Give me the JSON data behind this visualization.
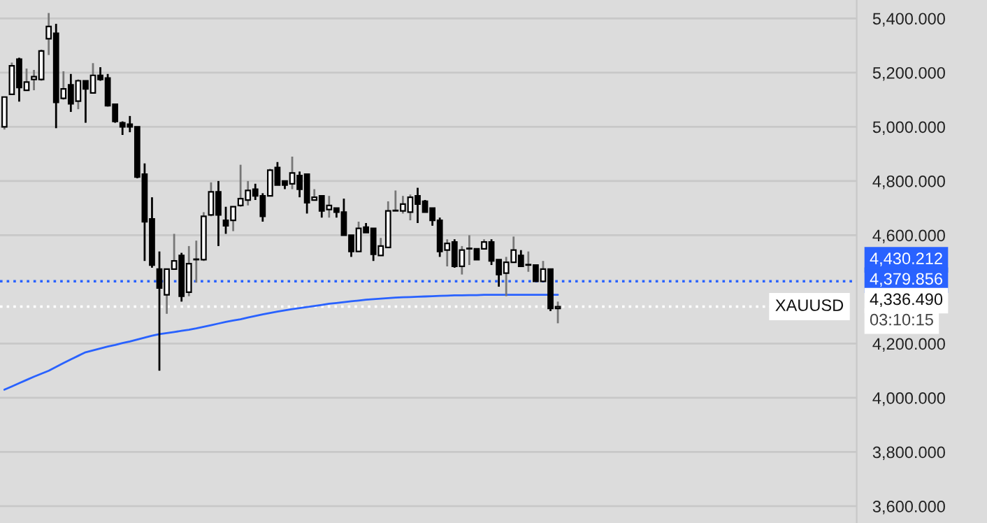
{
  "chart_data": {
    "type": "candlestick",
    "categories": [
      null,
      null,
      null,
      null,
      null,
      null,
      null,
      null,
      null,
      null,
      null,
      null,
      null,
      null,
      null,
      null,
      null,
      null,
      null,
      null,
      null,
      null,
      null,
      null,
      null,
      null,
      null,
      null,
      null,
      null,
      null,
      null,
      null,
      null,
      null,
      null,
      null,
      null,
      null,
      null,
      null,
      null,
      null,
      null,
      null,
      null,
      null,
      null,
      null,
      null,
      null,
      null,
      null,
      null,
      null,
      null,
      null,
      null,
      null,
      null,
      null,
      null,
      null,
      null,
      null,
      null,
      null,
      null,
      null,
      null,
      null,
      null,
      null,
      null,
      null,
      null
    ],
    "ohlc": [
      [
        5000,
        5110,
        4990,
        5110
      ],
      [
        5120,
        5237,
        5120,
        5225
      ],
      [
        5250,
        5255,
        5093,
        5145
      ],
      [
        5135,
        5215,
        5135,
        5165
      ],
      [
        5175,
        5210,
        5135,
        5185
      ],
      [
        5175,
        5285,
        5170,
        5280
      ],
      [
        5325,
        5420,
        5265,
        5370
      ],
      [
        5345,
        5380,
        4995,
        5090
      ],
      [
        5105,
        5205,
        5100,
        5140
      ],
      [
        5155,
        5195,
        5055,
        5085
      ],
      [
        5095,
        5175,
        5065,
        5170
      ],
      [
        5170,
        5170,
        5015,
        5140
      ],
      [
        5125,
        5235,
        5125,
        5190
      ],
      [
        5190,
        5220,
        5170,
        5175
      ],
      [
        5180,
        5195,
        5075,
        5078
      ],
      [
        5083,
        5083,
        5015,
        5020
      ],
      [
        5015,
        5020,
        4970,
        5000
      ],
      [
        5010,
        5040,
        4980,
        5000
      ],
      [
        5000,
        5000,
        4810,
        4815
      ],
      [
        4825,
        4865,
        4505,
        4650
      ],
      [
        4660,
        4740,
        4480,
        4490
      ],
      [
        4475,
        4540,
        4100,
        4405
      ],
      [
        4380,
        4475,
        4310,
        4475
      ],
      [
        4475,
        4605,
        4475,
        4505
      ],
      [
        4525,
        4535,
        4355,
        4375
      ],
      [
        4390,
        4560,
        4375,
        4495
      ],
      [
        4510,
        4580,
        4425,
        4510
      ],
      [
        4510,
        4685,
        4505,
        4670
      ],
      [
        4675,
        4795,
        4670,
        4760
      ],
      [
        4760,
        4800,
        4560,
        4675
      ],
      [
        4655,
        4705,
        4605,
        4635
      ],
      [
        4655,
        4705,
        4615,
        4705
      ],
      [
        4710,
        4860,
        4705,
        4735
      ],
      [
        4730,
        4800,
        4710,
        4765
      ],
      [
        4770,
        4790,
        4730,
        4745
      ],
      [
        4745,
        4755,
        4650,
        4670
      ],
      [
        4745,
        4845,
        4745,
        4840
      ],
      [
        4850,
        4870,
        4785,
        4785
      ],
      [
        4800,
        4800,
        4770,
        4785
      ],
      [
        4790,
        4890,
        4770,
        4830
      ],
      [
        4820,
        4835,
        4740,
        4770
      ],
      [
        4825,
        4825,
        4680,
        4720
      ],
      [
        4730,
        4770,
        4730,
        4740
      ],
      [
        4745,
        4745,
        4665,
        4690
      ],
      [
        4695,
        4745,
        4665,
        4710
      ],
      [
        4700,
        4700,
        4665,
        4685
      ],
      [
        4685,
        4735,
        4600,
        4600
      ],
      [
        4600,
        4600,
        4520,
        4540
      ],
      [
        4540,
        4650,
        4540,
        4625
      ],
      [
        4630,
        4645,
        4610,
        4610
      ],
      [
        4625,
        4625,
        4505,
        4530
      ],
      [
        4525,
        4590,
        4525,
        4560
      ],
      [
        4555,
        4725,
        4555,
        4690
      ],
      [
        4690,
        4765,
        4690,
        4690
      ],
      [
        4690,
        4745,
        4680,
        4715
      ],
      [
        4685,
        4750,
        4655,
        4740
      ],
      [
        4745,
        4775,
        4645,
        4715
      ],
      [
        4725,
        4730,
        4685,
        4685
      ],
      [
        4700,
        4700,
        4635,
        4655
      ],
      [
        4655,
        4665,
        4520,
        4540
      ],
      [
        4545,
        4585,
        4485,
        4570
      ],
      [
        4575,
        4585,
        4480,
        4485
      ],
      [
        4485,
        4560,
        4455,
        4545
      ],
      [
        4550,
        4600,
        4490,
        4550
      ],
      [
        4550,
        4550,
        4510,
        4510
      ],
      [
        4550,
        4585,
        4550,
        4575
      ],
      [
        4575,
        4585,
        4490,
        4505
      ],
      [
        4510,
        4510,
        4410,
        4455
      ],
      [
        4460,
        4520,
        4375,
        4500
      ],
      [
        4500,
        4595,
        4500,
        4545
      ],
      [
        4525,
        4545,
        4485,
        4485
      ],
      [
        4490,
        4540,
        4465,
        4490
      ],
      [
        4490,
        4490,
        4430,
        4430
      ],
      [
        4430,
        4505,
        4430,
        4475
      ],
      [
        4475,
        4475,
        4320,
        4330
      ],
      [
        4330,
        4355,
        4275,
        4336.49
      ]
    ],
    "series": [
      {
        "type": "line",
        "color": "#2962ff",
        "values": [
          4030,
          4042,
          4054,
          4066,
          4078,
          4089,
          4100,
          4114,
          4128,
          4142,
          4155,
          4168,
          4175,
          4182,
          4189,
          4195,
          4202,
          4208,
          4215,
          4222,
          4229,
          4235,
          4239,
          4243,
          4247,
          4251,
          4256,
          4262,
          4268,
          4274,
          4280,
          4285,
          4290,
          4296,
          4302,
          4308,
          4313,
          4318,
          4323,
          4327,
          4331,
          4335,
          4339,
          4343,
          4347,
          4350,
          4353,
          4356,
          4359,
          4362,
          4364,
          4366,
          4368,
          4370,
          4371,
          4372,
          4373,
          4374,
          4375,
          4376,
          4377,
          4378,
          4378,
          4379,
          4379,
          4380,
          4380,
          4380,
          4380,
          4380,
          4380,
          4380,
          4380,
          4380,
          4380,
          4380
        ]
      }
    ],
    "ylim": [
      3538,
      5468
    ],
    "yticks": [
      {
        "value": 3600,
        "label": "3,600.000"
      },
      {
        "value": 3800,
        "label": "3,800.000"
      },
      {
        "value": 4000,
        "label": "4,000.000"
      },
      {
        "value": 4200,
        "label": "4,200.000"
      },
      {
        "value": 4600,
        "label": "4,600.000"
      },
      {
        "value": 4800,
        "label": "4,800.000"
      },
      {
        "value": 5000,
        "label": "5,000.000"
      },
      {
        "value": 5200,
        "label": "5,200.000"
      },
      {
        "value": 5400,
        "label": "5,400.000"
      }
    ],
    "tick_labels": "y",
    "grid": "y",
    "ref_lines": [
      {
        "axis": "y",
        "value": 4430.212,
        "label": "4,430.212",
        "color": "#2962ff",
        "line_style": "dotted"
      },
      {
        "axis": "y",
        "value": 4336.49,
        "label": "XAUUSD",
        "color": "#ffffff",
        "line_style": "dotted"
      }
    ],
    "annotations": [
      "4,379.856",
      "4,336.490",
      "03:10:15"
    ]
  }
}
